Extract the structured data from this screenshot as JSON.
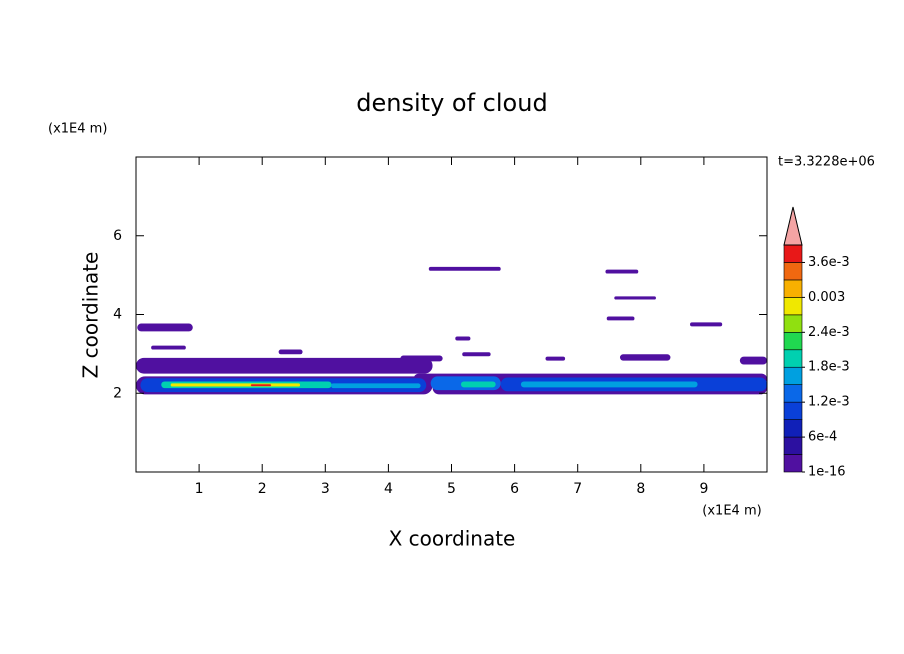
{
  "chart_data": {
    "type": "contour",
    "title": "density of cloud",
    "x_label": "X coordinate",
    "y_label": "Z coordinate",
    "x_unit": "(x1E4 m)",
    "y_unit": "(x1E4 m)",
    "annotation": "t=3.3228e+06",
    "xlim": [
      0,
      10
    ],
    "ylim": [
      0,
      8
    ],
    "xticks": [
      1,
      2,
      3,
      4,
      5,
      6,
      7,
      8,
      9
    ],
    "yticks": [
      2,
      4,
      6
    ],
    "levels": [
      1e-16,
      0.0003,
      0.0006,
      0.0009,
      0.0012,
      0.0015,
      0.0018,
      0.0021,
      0.0024,
      0.0027,
      0.003,
      0.0033,
      0.0036,
      0.0039
    ],
    "colors": [
      "#5010a0",
      "#2c10a0",
      "#1020b8",
      "#0a40d8",
      "#0a68e8",
      "#00a0e0",
      "#00d0b0",
      "#20d850",
      "#90e010",
      "#f0e800",
      "#f8b000",
      "#f06810",
      "#e81818"
    ],
    "extend_color": "#f4a4a4",
    "colorbar_ticks": [
      {
        "value": 1e-16,
        "label": "1e-16"
      },
      {
        "value": 0.0006,
        "label": "6e-4"
      },
      {
        "value": 0.0012,
        "label": "1.2e-3"
      },
      {
        "value": 0.0018,
        "label": "1.8e-3"
      },
      {
        "value": 0.0024,
        "label": "2.4e-3"
      },
      0.003,
      {
        "value": 0.0036,
        "label": "3.6e-3"
      }
    ],
    "patches": [
      {
        "x": [
          0.02,
          0.9
        ],
        "z": [
          3.57,
          3.77
        ],
        "value": 0.0001
      },
      {
        "x": [
          0.24,
          0.79
        ],
        "z": [
          3.11,
          3.21
        ],
        "value": 0.0001
      },
      {
        "x": [
          4.64,
          5.78
        ],
        "z": [
          5.11,
          5.21
        ],
        "value": 0.0001
      },
      {
        "x": [
          7.44,
          7.96
        ],
        "z": [
          5.04,
          5.14
        ],
        "value": 0.0001
      },
      {
        "x": [
          7.58,
          8.24
        ],
        "z": [
          4.38,
          4.46
        ],
        "value": 0.0001
      },
      {
        "x": [
          7.46,
          7.9
        ],
        "z": [
          3.85,
          3.95
        ],
        "value": 0.0001
      },
      {
        "x": [
          8.78,
          9.29
        ],
        "z": [
          3.7,
          3.8
        ],
        "value": 0.0001
      },
      {
        "x": [
          2.26,
          2.64
        ],
        "z": [
          2.99,
          3.11
        ],
        "value": 0.0001
      },
      {
        "x": [
          4.19,
          4.86
        ],
        "z": [
          2.81,
          2.96
        ],
        "value": 0.0001
      },
      {
        "x": [
          5.06,
          5.3
        ],
        "z": [
          3.34,
          3.44
        ],
        "value": 0.0001
      },
      {
        "x": [
          5.17,
          5.62
        ],
        "z": [
          2.94,
          3.04
        ],
        "value": 0.0001
      },
      {
        "x": [
          6.49,
          6.8
        ],
        "z": [
          2.83,
          2.93
        ],
        "value": 0.0001
      },
      {
        "x": [
          7.67,
          8.47
        ],
        "z": [
          2.83,
          2.99
        ],
        "value": 0.0001
      },
      {
        "x": [
          9.57,
          10
        ],
        "z": [
          2.73,
          2.93
        ],
        "value": 0.0001
      },
      {
        "x": [
          0,
          4.7
        ],
        "z": [
          2.5,
          2.9
        ],
        "value": 0.0001
      },
      {
        "x": [
          4.4,
          10
        ],
        "z": [
          2.23,
          2.5
        ],
        "value": 0.0001
      },
      {
        "x": [
          0,
          4.7
        ],
        "z": [
          1.97,
          2.43
        ],
        "value": 0.0001
      },
      {
        "x": [
          4.7,
          10
        ],
        "z": [
          1.97,
          2.3
        ],
        "value": 0.0001
      },
      {
        "x": [
          0.07,
          4.6
        ],
        "z": [
          2.03,
          2.38
        ],
        "value": 0.0009
      },
      {
        "x": [
          4.67,
          5.78
        ],
        "z": [
          2.08,
          2.43
        ],
        "value": 0.0012
      },
      {
        "x": [
          5.78,
          10
        ],
        "z": [
          2.05,
          2.4
        ],
        "value": 0.0009
      },
      {
        "x": [
          0.4,
          3.1
        ],
        "z": [
          2.13,
          2.3
        ],
        "value": 0.0018
      },
      {
        "x": [
          3.09,
          4.51
        ],
        "z": [
          2.13,
          2.25
        ],
        "value": 0.0015
      },
      {
        "x": [
          5.15,
          5.7
        ],
        "z": [
          2.15,
          2.3
        ],
        "value": 0.0018
      },
      {
        "x": [
          6.1,
          8.9
        ],
        "z": [
          2.15,
          2.3
        ],
        "value": 0.0015
      },
      {
        "x": [
          0.55,
          2.6
        ],
        "z": [
          2.17,
          2.25
        ],
        "value": 0.0027
      },
      {
        "x": [
          1.82,
          2.14
        ],
        "z": [
          2.18,
          2.23
        ],
        "value": 0.0038
      }
    ]
  }
}
